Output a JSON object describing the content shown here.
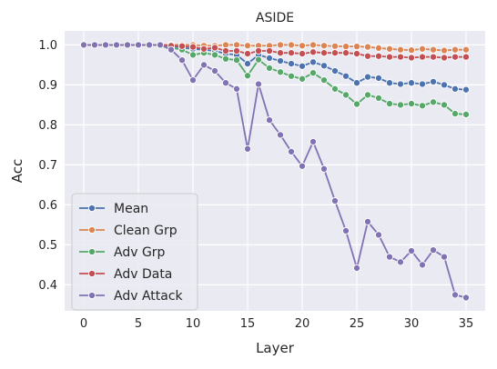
{
  "chart_data": {
    "type": "line",
    "title": "ASIDE",
    "xlabel": "Layer",
    "ylabel": "Acc",
    "xlim": [
      -1.75,
      36.75
    ],
    "ylim": [
      0.335,
      1.035
    ],
    "xticks": [
      0,
      5,
      10,
      15,
      20,
      25,
      30,
      35
    ],
    "yticks": [
      0.4,
      0.5,
      0.6,
      0.7,
      0.8,
      0.9,
      1.0
    ],
    "ytick_labels": [
      "0.4",
      "0.5",
      "0.6",
      "0.7",
      "0.8",
      "0.9",
      "1.0"
    ],
    "grid": true,
    "legend_position": "lower-left",
    "x": [
      0,
      1,
      2,
      3,
      4,
      5,
      6,
      7,
      8,
      9,
      10,
      11,
      12,
      13,
      14,
      15,
      16,
      17,
      18,
      19,
      20,
      21,
      22,
      23,
      24,
      25,
      26,
      27,
      28,
      29,
      30,
      31,
      32,
      33,
      34,
      35
    ],
    "series": [
      {
        "name": "Mean",
        "color": "#4c72b0",
        "values": [
          1.0,
          1.0,
          1.0,
          1.0,
          1.0,
          1.0,
          1.0,
          1.0,
          0.997,
          0.993,
          0.99,
          0.988,
          0.985,
          0.978,
          0.975,
          0.953,
          0.975,
          0.967,
          0.96,
          0.953,
          0.947,
          0.957,
          0.948,
          0.935,
          0.922,
          0.905,
          0.92,
          0.917,
          0.905,
          0.902,
          0.905,
          0.902,
          0.908,
          0.9,
          0.89,
          0.888
        ]
      },
      {
        "name": "Clean Grp",
        "color": "#dd8452",
        "values": [
          1.0,
          1.0,
          1.0,
          1.0,
          1.0,
          1.0,
          1.0,
          1.0,
          1.0,
          1.0,
          1.0,
          0.998,
          0.998,
          1.0,
          1.0,
          0.998,
          0.998,
          0.998,
          1.0,
          1.0,
          0.998,
          1.0,
          0.998,
          0.997,
          0.996,
          0.996,
          0.995,
          0.992,
          0.99,
          0.988,
          0.987,
          0.99,
          0.988,
          0.986,
          0.988,
          0.988
        ]
      },
      {
        "name": "Adv Grp",
        "color": "#55a868",
        "values": [
          1.0,
          1.0,
          1.0,
          1.0,
          1.0,
          1.0,
          1.0,
          1.0,
          0.993,
          0.988,
          0.975,
          0.98,
          0.975,
          0.965,
          0.962,
          0.923,
          0.963,
          0.942,
          0.932,
          0.922,
          0.915,
          0.93,
          0.912,
          0.89,
          0.875,
          0.852,
          0.875,
          0.867,
          0.853,
          0.85,
          0.853,
          0.848,
          0.857,
          0.85,
          0.828,
          0.826
        ]
      },
      {
        "name": "Adv Data",
        "color": "#c44e52",
        "values": [
          1.0,
          1.0,
          1.0,
          1.0,
          1.0,
          1.0,
          1.0,
          1.0,
          0.998,
          0.997,
          0.995,
          0.99,
          0.993,
          0.985,
          0.985,
          0.978,
          0.985,
          0.985,
          0.98,
          0.98,
          0.978,
          0.982,
          0.98,
          0.98,
          0.98,
          0.978,
          0.972,
          0.972,
          0.97,
          0.97,
          0.968,
          0.97,
          0.97,
          0.968,
          0.97,
          0.97
        ]
      },
      {
        "name": "Adv Attack",
        "color": "#8172b3",
        "values": [
          1.0,
          1.0,
          1.0,
          1.0,
          1.0,
          1.0,
          1.0,
          1.0,
          0.988,
          0.962,
          0.912,
          0.95,
          0.935,
          0.905,
          0.89,
          0.74,
          0.902,
          0.812,
          0.775,
          0.733,
          0.697,
          0.758,
          0.69,
          0.61,
          0.535,
          0.442,
          0.558,
          0.525,
          0.47,
          0.457,
          0.485,
          0.45,
          0.487,
          0.47,
          0.375,
          0.368
        ]
      }
    ]
  }
}
